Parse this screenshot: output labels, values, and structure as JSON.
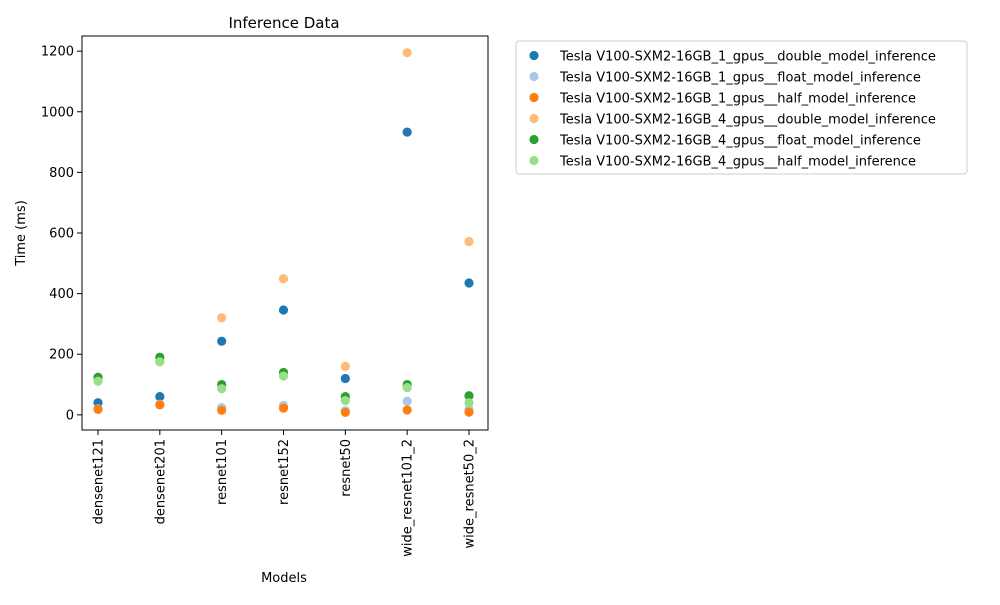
{
  "chart_data": {
    "type": "scatter",
    "title": "Inference Data",
    "xlabel": "Models",
    "ylabel": "Time (ms)",
    "categories": [
      "densenet121",
      "densenet201",
      "resnet101",
      "resnet152",
      "resnet50",
      "wide_resnet101_2",
      "wide_resnet50_2"
    ],
    "ylim": [
      -50,
      1250
    ],
    "yticks": [
      0,
      200,
      400,
      600,
      800,
      1000,
      1200
    ],
    "grid": false,
    "legend_position": "outside upper right",
    "series": [
      {
        "name": "Tesla V100-SXM2-16GB_1_gpus__double_model_inference",
        "color": "#1f77b4",
        "values": [
          40,
          60,
          243,
          346,
          120,
          933,
          435
        ]
      },
      {
        "name": "Tesla V100-SXM2-16GB_1_gpus__float_model_inference",
        "color": "#aec7e8",
        "values": [
          20,
          35,
          24,
          31,
          14,
          45,
          18
        ]
      },
      {
        "name": "Tesla V100-SXM2-16GB_1_gpus__half_model_inference",
        "color": "#ff7f0e",
        "values": [
          18,
          33,
          15,
          22,
          8,
          16,
          9
        ]
      },
      {
        "name": "Tesla V100-SXM2-16GB_4_gpus__double_model_inference",
        "color": "#ffbb78",
        "values": [
          120,
          175,
          320,
          449,
          160,
          1195,
          572
        ]
      },
      {
        "name": "Tesla V100-SXM2-16GB_4_gpus__float_model_inference",
        "color": "#2ca02c",
        "values": [
          124,
          190,
          100,
          140,
          60,
          100,
          63
        ]
      },
      {
        "name": "Tesla V100-SXM2-16GB_4_gpus__half_model_inference",
        "color": "#98df8a",
        "values": [
          111,
          175,
          86,
          128,
          47,
          90,
          40
        ]
      }
    ]
  }
}
